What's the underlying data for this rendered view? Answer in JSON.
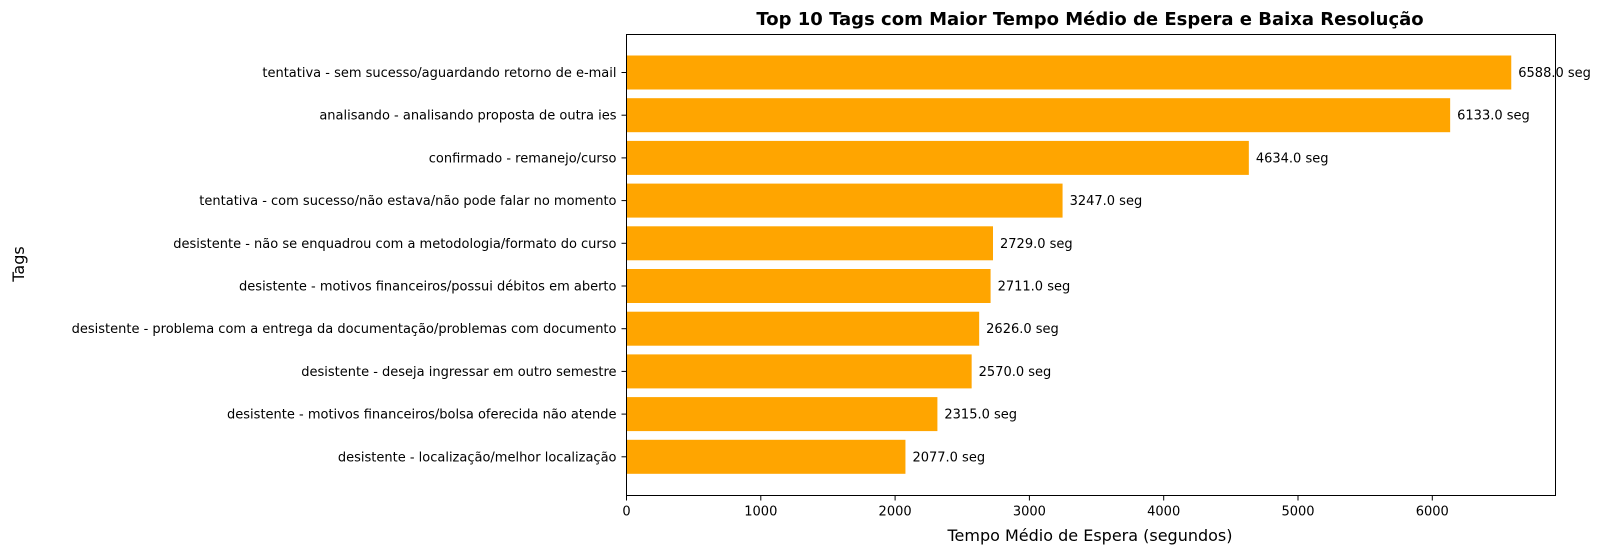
{
  "chart_data": {
    "type": "bar",
    "orientation": "horizontal",
    "title": "Top 10 Tags com Maior Tempo Médio de Espera e Baixa Resolução",
    "xlabel": "Tempo Médio de Espera (segundos)",
    "ylabel": "Tags",
    "xlim": [
      0,
      6917.4
    ],
    "xticks": [
      0,
      1000,
      2000,
      3000,
      4000,
      5000,
      6000
    ],
    "bar_color": "#FFA500",
    "grid": false,
    "legend": "none",
    "value_suffix": " seg",
    "categories": [
      "tentativa - sem sucesso/aguardando retorno de e-mail",
      "analisando - analisando proposta de outra ies",
      "confirmado - remanejo/curso",
      "tentativa - com sucesso/não estava/não pode falar no momento",
      "desistente - não se enquadrou com a metodologia/formato do curso",
      "desistente - motivos financeiros/possui débitos em aberto",
      "desistente - problema com a entrega da documentação/problemas com documento",
      "desistente - deseja ingressar em outro semestre",
      "desistente - motivos financeiros/bolsa oferecida não atende",
      "desistente - localização/melhor localização"
    ],
    "values": [
      6588.0,
      6133.0,
      4634.0,
      3247.0,
      2729.0,
      2711.0,
      2626.0,
      2570.0,
      2315.0,
      2077.0
    ],
    "value_labels": [
      "6588.0 seg",
      "6133.0 seg",
      "4634.0 seg",
      "3247.0 seg",
      "2729.0 seg",
      "2711.0 seg",
      "2626.0 seg",
      "2570.0 seg",
      "2315.0 seg",
      "2077.0 seg"
    ]
  }
}
